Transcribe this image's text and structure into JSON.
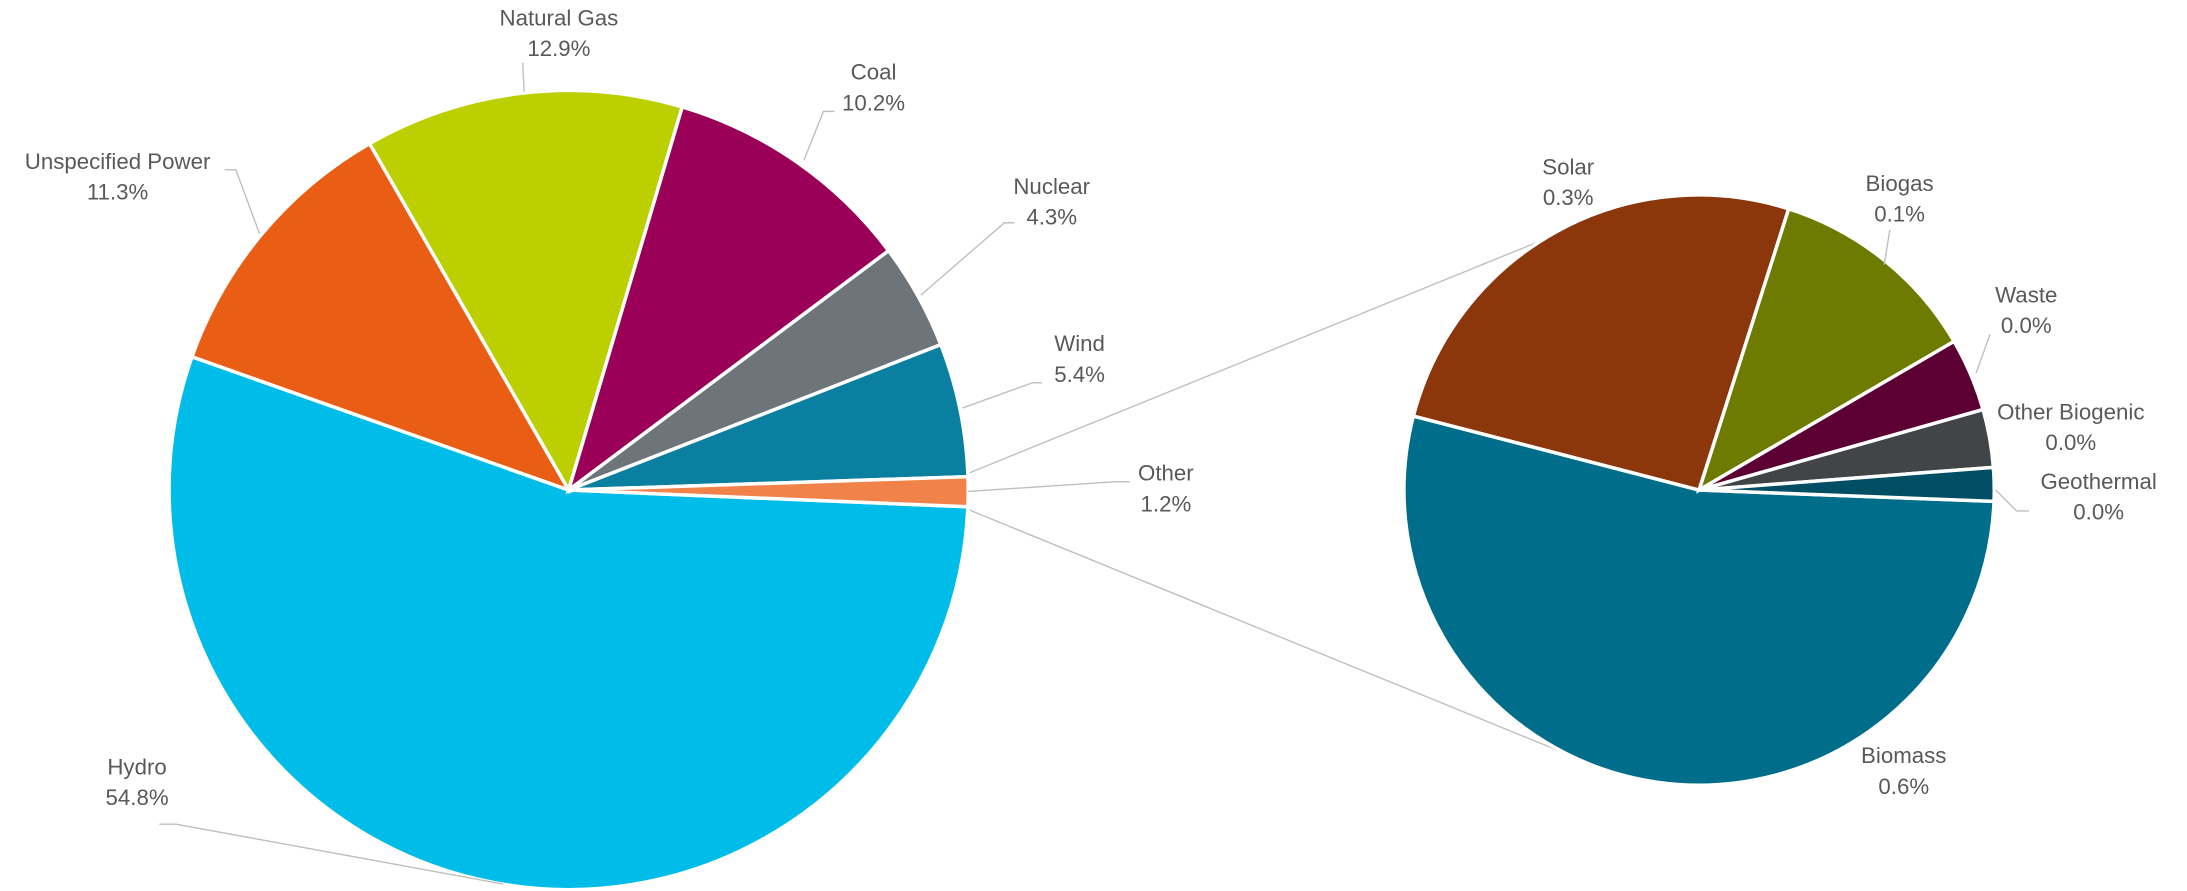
{
  "chart_data": [
    {
      "type": "pie",
      "categories": [
        "Hydro",
        "Unspecified Power",
        "Natural Gas",
        "Coal",
        "Nuclear",
        "Wind",
        "Other"
      ],
      "values": [
        54.8,
        11.3,
        12.9,
        10.2,
        4.3,
        5.4,
        1.2
      ],
      "value_labels": [
        "54.8%",
        "11.3%",
        "12.9%",
        "10.2%",
        "4.3%",
        "5.4%",
        "1.2%"
      ],
      "colors": [
        "#00bce8",
        "#e95e14",
        "#bccf00",
        "#9b0058",
        "#6d747a",
        "#0a7fa0",
        "#f0824a"
      ]
    },
    {
      "type": "pie",
      "categories": [
        "Biomass",
        "Solar",
        "Biogas",
        "Waste",
        "Other Biogenic",
        "Geothermal"
      ],
      "values": [
        0.64,
        0.31,
        0.14,
        0.048,
        0.038,
        0.022
      ],
      "value_labels": [
        "0.6%",
        "0.3%",
        "0.1%",
        "0.0%",
        "0.0%",
        "0.0%"
      ],
      "colors": [
        "#006e8a",
        "#8b360b",
        "#6e7a00",
        "#5c0033",
        "#414548",
        "#004e63"
      ]
    }
  ]
}
